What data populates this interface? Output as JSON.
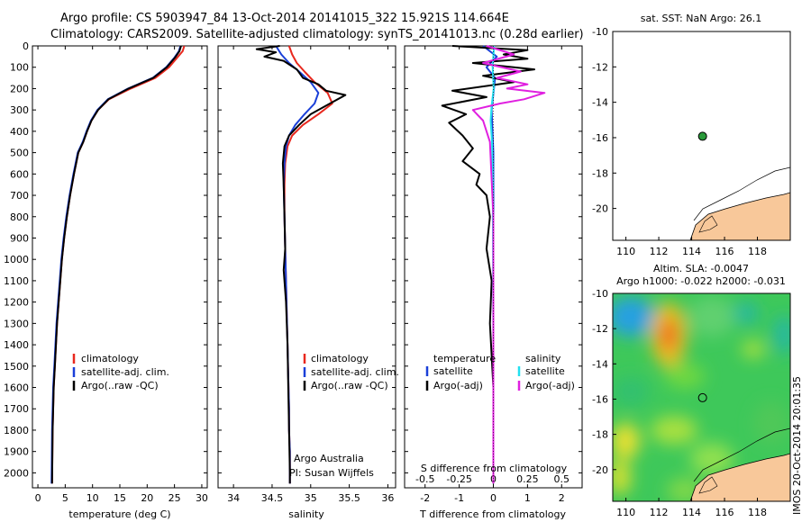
{
  "header": {
    "title_line1": "Argo profile: CS 5903947_84 13-Oct-2014 20141015_322 15.921S 114.664E",
    "title_line2": "Climatology: CARS2009. Satellite-adjusted climatology: synTS_20141013.nc (0.28d earlier)"
  },
  "colors": {
    "climatology": "#e8281e",
    "satellite": "#1a3fd8",
    "argo": "#000000",
    "salinity_satellite": "#22e0f0",
    "salinity_argo": "#e020e0",
    "land": "#f8c89a",
    "argo_marker": "#2a9a3a"
  },
  "stamp": "IMOS 20-Oct-2014 20:01:35",
  "chart_data": [
    {
      "id": "temperature",
      "type": "line",
      "xlabel": "temperature (deg C)",
      "ylabel": "",
      "xlim": [
        -1,
        31
      ],
      "ylim": [
        2070,
        0
      ],
      "xticks": [
        0,
        5,
        10,
        15,
        20,
        25,
        30
      ],
      "yticks": [
        0,
        100,
        200,
        300,
        400,
        500,
        600,
        700,
        800,
        900,
        1000,
        1100,
        1200,
        1300,
        1400,
        1500,
        1600,
        1700,
        1800,
        1900,
        2000
      ],
      "legend": [
        "climatology",
        "satellite-adj. clim.",
        "Argo(..raw -QC)"
      ],
      "series": [
        {
          "name": "climatology",
          "color": "#e8281e",
          "x": [
            26.8,
            26.5,
            25.5,
            24,
            21.5,
            17,
            13,
            11,
            9.8,
            9,
            8.3,
            7.4,
            6.6,
            5.9,
            5.3,
            4.8,
            4.4,
            4.1,
            3.8,
            3.5,
            3.3,
            3.1,
            2.9,
            2.7,
            2.6
          ],
          "y": [
            0,
            25,
            55,
            100,
            150,
            200,
            250,
            300,
            350,
            400,
            450,
            500,
            600,
            700,
            800,
            900,
            1000,
            1100,
            1200,
            1300,
            1400,
            1500,
            1600,
            1800,
            2050
          ]
        },
        {
          "name": "satellite-adj. clim.",
          "color": "#1a3fd8",
          "x": [
            26.1,
            25.8,
            25,
            23.5,
            21,
            16.5,
            12.8,
            10.9,
            9.7,
            8.9,
            8.2,
            7.3,
            6.5,
            5.8,
            5.2,
            4.7,
            4.3,
            4,
            3.7,
            3.4,
            3.2,
            3,
            2.8,
            2.6,
            2.5
          ],
          "y": [
            0,
            25,
            55,
            100,
            150,
            200,
            250,
            300,
            350,
            400,
            450,
            500,
            600,
            700,
            800,
            900,
            1000,
            1100,
            1200,
            1300,
            1400,
            1500,
            1600,
            1800,
            2050
          ]
        },
        {
          "name": "Argo(..raw -QC)",
          "color": "#000000",
          "x": [
            26.2,
            25.9,
            25.1,
            23.6,
            21.1,
            16.6,
            12.9,
            11,
            9.8,
            9,
            8.3,
            7.4,
            6.6,
            5.9,
            5.3,
            4.8,
            4.4,
            4.1,
            3.8,
            3.5,
            3.3,
            3.1,
            2.9,
            2.7,
            2.6
          ],
          "y": [
            0,
            25,
            55,
            100,
            150,
            200,
            250,
            300,
            350,
            400,
            450,
            500,
            600,
            700,
            800,
            900,
            1000,
            1100,
            1200,
            1300,
            1400,
            1500,
            1600,
            1800,
            2050
          ]
        }
      ]
    },
    {
      "id": "salinity",
      "type": "line",
      "xlabel": "salinity",
      "xlim": [
        33.8,
        36.1
      ],
      "ylim": [
        2070,
        0
      ],
      "xticks": [
        34,
        34.5,
        35,
        35.5,
        36
      ],
      "legend": [
        "climatology",
        "satellite-adj. clim.",
        "Argo(..raw -QC)"
      ],
      "annotation": [
        "Argo Australia",
        "PI: Susan Wijffels"
      ],
      "series": [
        {
          "name": "climatology",
          "color": "#e8281e",
          "x": [
            34.72,
            34.76,
            34.82,
            34.92,
            35.05,
            35.22,
            35.28,
            35.1,
            34.9,
            34.76,
            34.7,
            34.67,
            34.66,
            34.66,
            34.67,
            34.68,
            34.69,
            34.7,
            34.71,
            34.72,
            34.72,
            34.73,
            34.73,
            34.73
          ],
          "y": [
            0,
            40,
            80,
            120,
            170,
            220,
            270,
            320,
            370,
            420,
            470,
            550,
            650,
            800,
            950,
            1100,
            1250,
            1400,
            1550,
            1700,
            1800,
            1900,
            2000,
            2050
          ]
        },
        {
          "name": "satellite-adj. clim.",
          "color": "#1a3fd8",
          "x": [
            34.55,
            34.62,
            34.72,
            34.85,
            35.0,
            35.1,
            35.05,
            34.92,
            34.8,
            34.72,
            34.68,
            34.66,
            34.65,
            34.66,
            34.67,
            34.68,
            34.69,
            34.7,
            34.71,
            34.72,
            34.72,
            34.73,
            34.73,
            34.73
          ],
          "y": [
            0,
            40,
            80,
            120,
            170,
            220,
            270,
            320,
            370,
            420,
            470,
            550,
            650,
            800,
            950,
            1100,
            1250,
            1400,
            1550,
            1700,
            1800,
            1900,
            2000,
            2050
          ]
        },
        {
          "name": "Argo(..raw -QC)",
          "color": "#000000",
          "x": [
            34.6,
            34.3,
            34.55,
            34.4,
            34.65,
            34.82,
            34.9,
            35.1,
            35.2,
            35.45,
            35.25,
            35.0,
            34.85,
            34.72,
            34.66,
            34.64,
            34.65,
            34.66,
            34.67,
            34.65,
            34.68,
            34.7,
            34.71,
            34.72,
            34.73,
            34.73
          ],
          "y": [
            0,
            15,
            30,
            50,
            70,
            110,
            150,
            180,
            210,
            230,
            270,
            320,
            370,
            420,
            470,
            550,
            650,
            800,
            950,
            1050,
            1200,
            1400,
            1600,
            1800,
            2000,
            2050
          ]
        }
      ]
    },
    {
      "id": "difference",
      "type": "line",
      "xlabel": "T difference from climatology",
      "xlabel_top": "S difference from climatology",
      "xlim": [
        -2.6,
        2.6
      ],
      "ylim": [
        2070,
        0
      ],
      "xticks": [
        -2,
        -1,
        0,
        1,
        2
      ],
      "xticks_top": [
        -0.5,
        -0.25,
        0,
        0.25,
        0.5
      ],
      "legend": [
        "temperature",
        "satellite",
        "Argo(-adj)",
        "salinity",
        "satellite",
        "Argo(-adj)"
      ],
      "series": [
        {
          "name": "T satellite",
          "color": "#1a3fd8",
          "x": [
            -0.3,
            0.1,
            -0.2,
            0.05,
            -0.05,
            0.0,
            0.0,
            0.0,
            0.0
          ],
          "y": [
            0,
            50,
            100,
            150,
            300,
            500,
            1000,
            1500,
            2050
          ]
        },
        {
          "name": "T Argo(-adj)",
          "color": "#000000",
          "x": [
            -1.2,
            1.0,
            0.3,
            1.0,
            -0.6,
            1.2,
            -0.3,
            0.6,
            -1.2,
            -0.2,
            -1.5,
            -0.8,
            -1.3,
            -0.9,
            -0.6,
            -0.9,
            -0.4,
            -0.5,
            -0.2,
            -0.1,
            -0.2,
            -0.05,
            -0.1,
            0.0,
            0.0
          ],
          "y": [
            0,
            20,
            40,
            60,
            80,
            110,
            140,
            170,
            210,
            240,
            280,
            320,
            360,
            420,
            480,
            540,
            600,
            650,
            700,
            800,
            950,
            1100,
            1300,
            1600,
            2050
          ]
        },
        {
          "name": "S satellite",
          "color": "#22e0f0",
          "x": [
            0.02,
            -0.02,
            0.01,
            -0.05,
            -0.08,
            -0.04,
            -0.02,
            -0.01,
            0.0,
            0.0
          ],
          "y": [
            0,
            100,
            200,
            280,
            350,
            450,
            600,
            900,
            1400,
            2050
          ]
        },
        {
          "name": "S Argo(-adj)",
          "color": "#e020e0",
          "x": [
            -0.2,
            0.6,
            -0.3,
            0.8,
            0.1,
            1.0,
            0.4,
            1.5,
            0.9,
            0.2,
            -0.6,
            -0.3,
            -0.1,
            0.0,
            0.0
          ],
          "y": [
            0,
            40,
            80,
            120,
            150,
            180,
            200,
            220,
            250,
            270,
            300,
            350,
            450,
            800,
            2050
          ]
        }
      ]
    },
    {
      "id": "sst-map",
      "type": "scatter",
      "title": "sat. SST: NaN Argo: 26.1",
      "xlim": [
        109.2,
        120
      ],
      "ylim": [
        -21.8,
        -10
      ],
      "xticks": [
        110,
        112,
        114,
        116,
        118
      ],
      "yticks": [
        -10,
        -12,
        -14,
        -16,
        -18,
        -20
      ],
      "points": [
        {
          "x": 114.664,
          "y": -15.921
        }
      ]
    },
    {
      "id": "sla-map",
      "type": "heatmap",
      "title_line1": "Altim. SLA: -0.0047",
      "title_line2": "Argo h1000: -0.022 h2000: -0.031",
      "xlim": [
        109.2,
        120
      ],
      "ylim": [
        -21.8,
        -10
      ],
      "xticks": [
        110,
        112,
        114,
        116,
        118
      ],
      "yticks": [
        -10,
        -12,
        -14,
        -16,
        -18,
        -20
      ],
      "points": [
        {
          "x": 114.664,
          "y": -15.921
        }
      ]
    }
  ]
}
